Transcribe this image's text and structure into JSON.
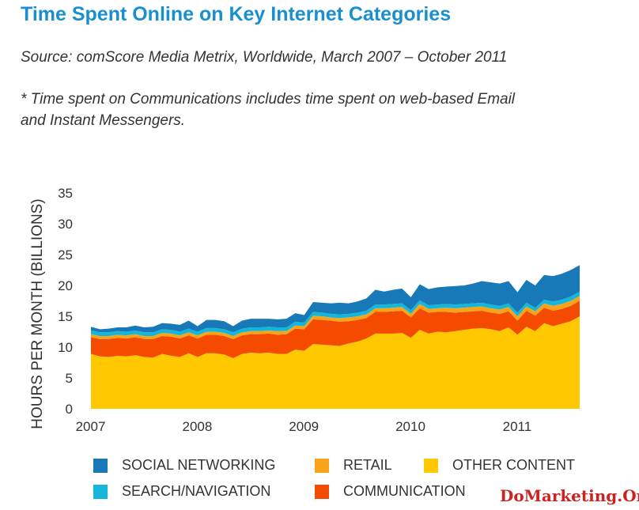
{
  "header": {
    "title": "Time Spent Online on Key Internet Categories",
    "subtitle": "Source: comScore Media Metrix, Worldwide, March 2007 – October 2011",
    "note_line1": "* Time spent on Communications includes time spent on web-based Email",
    "note_line2": "and Instant Messengers."
  },
  "watermark": "DoMarketing.Org",
  "chart_data": {
    "type": "area",
    "stacked": true,
    "title": "Time Spent Online on Key Internet Categories",
    "ylabel": "HOURS PER MONTH (BILLIONS)",
    "xlabel": "",
    "ylim": [
      0,
      35
    ],
    "xlim": [
      "2007-03",
      "2011-10"
    ],
    "y_ticks": [
      "0",
      "5",
      "10",
      "15",
      "20",
      "25",
      "30",
      "35"
    ],
    "x_tick_labels": [
      "2007",
      "2008",
      "2009",
      "2010",
      "2011"
    ],
    "grid": false,
    "legend_position": "bottom",
    "x": [
      "2007-03",
      "2007-04",
      "2007-05",
      "2007-06",
      "2007-07",
      "2007-08",
      "2007-09",
      "2007-10",
      "2007-11",
      "2007-12",
      "2008-01",
      "2008-02",
      "2008-03",
      "2008-04",
      "2008-05",
      "2008-06",
      "2008-07",
      "2008-08",
      "2008-09",
      "2008-10",
      "2008-11",
      "2008-12",
      "2009-01",
      "2009-02",
      "2009-03",
      "2009-04",
      "2009-05",
      "2009-06",
      "2009-07",
      "2009-08",
      "2009-09",
      "2009-10",
      "2009-11",
      "2009-12",
      "2010-01",
      "2010-02",
      "2010-03",
      "2010-04",
      "2010-05",
      "2010-06",
      "2010-07",
      "2010-08",
      "2010-09",
      "2010-10",
      "2010-11",
      "2010-12",
      "2011-01",
      "2011-02",
      "2011-03",
      "2011-04",
      "2011-05",
      "2011-06",
      "2011-07",
      "2011-08",
      "2011-09",
      "2011-10"
    ],
    "series": [
      {
        "name": "OTHER CONTENT",
        "color": "#ffc800",
        "values": [
          8.9,
          8.5,
          8.4,
          8.6,
          8.5,
          8.7,
          8.4,
          8.3,
          8.9,
          8.6,
          8.4,
          9.0,
          8.4,
          9.0,
          9.0,
          8.8,
          8.2,
          8.9,
          9.1,
          9.0,
          9.1,
          8.9,
          8.9,
          9.6,
          9.4,
          10.5,
          10.4,
          10.3,
          10.2,
          10.6,
          10.9,
          11.4,
          12.2,
          12.2,
          12.2,
          12.3,
          11.5,
          12.8,
          12.2,
          12.5,
          12.4,
          12.6,
          12.8,
          13.0,
          13.1,
          12.9,
          12.6,
          13.2,
          12.0,
          13.3,
          12.6,
          13.9,
          13.4,
          13.8,
          14.2,
          15.0
        ]
      },
      {
        "name": "COMMUNICATION",
        "color": "#f44b00",
        "values": [
          2.7,
          2.8,
          2.9,
          2.9,
          2.9,
          2.9,
          2.9,
          3.0,
          2.9,
          3.1,
          3.0,
          2.9,
          3.0,
          3.0,
          3.0,
          3.0,
          3.1,
          3.0,
          3.0,
          3.1,
          3.1,
          3.1,
          3.2,
          3.4,
          3.5,
          4.0,
          4.0,
          4.0,
          3.9,
          3.6,
          3.5,
          3.3,
          3.5,
          3.5,
          3.6,
          3.6,
          3.3,
          3.5,
          3.4,
          3.2,
          3.3,
          3.0,
          2.9,
          2.8,
          2.8,
          2.7,
          2.8,
          2.6,
          2.3,
          2.6,
          2.5,
          2.5,
          2.5,
          2.4,
          2.5,
          2.5
        ]
      },
      {
        "name": "RETAIL",
        "color": "#f9a31b",
        "values": [
          0.5,
          0.5,
          0.5,
          0.5,
          0.5,
          0.5,
          0.5,
          0.5,
          0.5,
          0.5,
          0.5,
          0.5,
          0.5,
          0.5,
          0.5,
          0.5,
          0.5,
          0.5,
          0.5,
          0.5,
          0.5,
          0.6,
          0.5,
          0.5,
          0.5,
          0.6,
          0.6,
          0.5,
          0.6,
          0.6,
          0.6,
          0.6,
          0.6,
          0.6,
          0.6,
          0.6,
          0.6,
          0.7,
          0.6,
          0.6,
          0.7,
          0.7,
          0.7,
          0.7,
          0.7,
          0.7,
          0.7,
          0.7,
          0.7,
          0.7,
          0.7,
          0.7,
          0.8,
          0.8,
          0.8,
          0.8
        ]
      },
      {
        "name": "SEARCH/NAVIGATION",
        "color": "#14b6d9",
        "values": [
          0.6,
          0.6,
          0.6,
          0.6,
          0.6,
          0.6,
          0.6,
          0.6,
          0.6,
          0.6,
          0.6,
          0.6,
          0.6,
          0.6,
          0.6,
          0.6,
          0.6,
          0.6,
          0.6,
          0.6,
          0.6,
          0.6,
          0.6,
          0.6,
          0.6,
          0.6,
          0.6,
          0.6,
          0.6,
          0.6,
          0.6,
          0.6,
          0.6,
          0.6,
          0.6,
          0.6,
          0.6,
          0.6,
          0.6,
          0.6,
          0.6,
          0.6,
          0.6,
          0.6,
          0.6,
          0.6,
          0.6,
          0.6,
          0.6,
          0.6,
          0.6,
          0.6,
          0.7,
          0.7,
          0.7,
          0.7
        ]
      },
      {
        "name": "SOCIAL NETWORKING",
        "color": "#1779b8",
        "values": [
          0.6,
          0.5,
          0.6,
          0.6,
          0.7,
          0.8,
          0.8,
          0.9,
          1.0,
          1.0,
          1.1,
          1.3,
          0.9,
          1.3,
          1.3,
          1.3,
          1.0,
          1.3,
          1.4,
          1.4,
          1.3,
          1.3,
          1.4,
          1.4,
          1.2,
          1.6,
          1.6,
          1.7,
          1.9,
          1.7,
          1.8,
          2.0,
          2.4,
          2.1,
          2.3,
          2.4,
          2.1,
          2.6,
          2.6,
          2.8,
          2.8,
          3.0,
          3.0,
          3.2,
          3.5,
          3.6,
          3.6,
          3.6,
          3.3,
          3.7,
          3.6,
          4.0,
          4.1,
          4.2,
          4.3,
          4.3
        ]
      }
    ]
  },
  "legend": {
    "items": [
      {
        "label": "SOCIAL NETWORKING",
        "color": "#1779b8"
      },
      {
        "label": "RETAIL",
        "color": "#f9a31b"
      },
      {
        "label": "OTHER CONTENT",
        "color": "#ffc800"
      },
      {
        "label": "SEARCH/NAVIGATION",
        "color": "#14b6d9"
      },
      {
        "label": "COMMUNICATION",
        "color": "#f44b00"
      }
    ]
  }
}
